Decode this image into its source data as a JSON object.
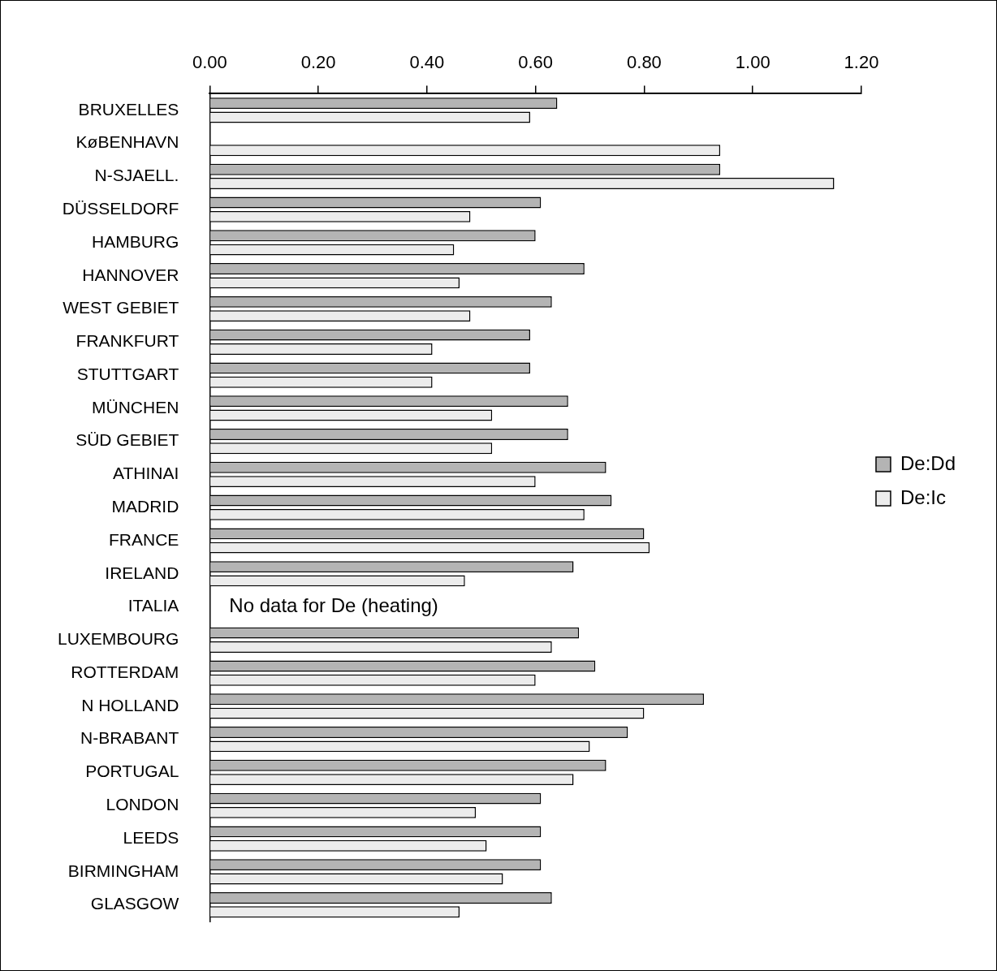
{
  "chart_data": {
    "type": "bar",
    "orientation": "horizontal",
    "categories": [
      "BRUXELLES",
      "KøBENHAVN",
      "N-SJAELL.",
      "DÜSSELDORF",
      "HAMBURG",
      "HANNOVER",
      "WEST GEBIET",
      "FRANKFURT",
      "STUTTGART",
      "MÜNCHEN",
      "SÜD GEBIET",
      "ATHINAI",
      "MADRID",
      "FRANCE",
      "IRELAND",
      "ITALIA",
      "LUXEMBOURG",
      "ROTTERDAM",
      "N HOLLAND",
      "N-BRABANT",
      "PORTUGAL",
      "LONDON",
      "LEEDS",
      "BIRMINGHAM",
      "GLASGOW"
    ],
    "series": [
      {
        "name": "De:Dd",
        "color": "#b4b4b4",
        "values": [
          0.64,
          null,
          0.94,
          0.61,
          0.6,
          0.69,
          0.63,
          0.59,
          0.59,
          0.66,
          0.66,
          0.73,
          0.74,
          0.8,
          0.67,
          null,
          0.68,
          0.71,
          0.91,
          0.77,
          0.73,
          0.61,
          0.61,
          0.61,
          0.63
        ]
      },
      {
        "name": "De:Ic",
        "color": "#ececec",
        "values": [
          0.59,
          0.94,
          1.15,
          0.48,
          0.45,
          0.46,
          0.48,
          0.41,
          0.41,
          0.52,
          0.52,
          0.6,
          0.69,
          0.81,
          0.47,
          null,
          0.63,
          0.6,
          0.8,
          0.7,
          0.67,
          0.49,
          0.51,
          0.54,
          0.46
        ]
      }
    ],
    "xlim": [
      0,
      1.2
    ],
    "xticks": [
      {
        "value": 0,
        "label": "0.00"
      },
      {
        "value": 0.2,
        "label": "0.20"
      },
      {
        "value": 0.4,
        "label": "0.40"
      },
      {
        "value": 0.6,
        "label": "0.60"
      },
      {
        "value": 0.8,
        "label": "0.80"
      },
      {
        "value": 1.0,
        "label": "1.00"
      },
      {
        "value": 1.2,
        "label": "1.20"
      }
    ],
    "legend": "right",
    "annotations": [
      "No data for De (heating)"
    ]
  }
}
